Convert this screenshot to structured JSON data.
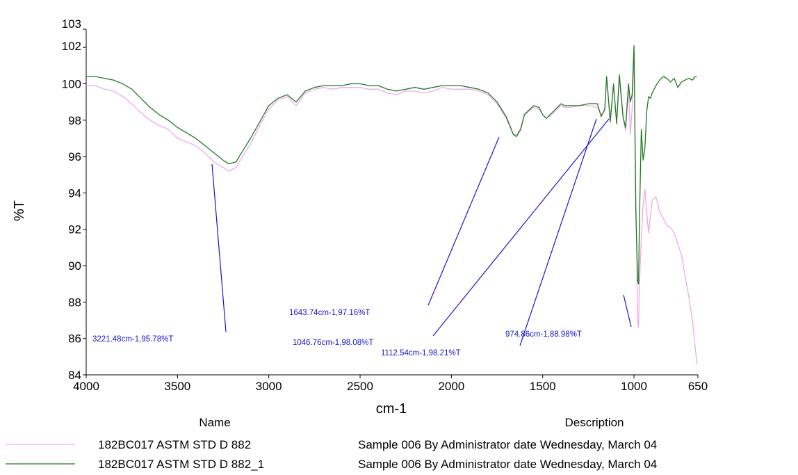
{
  "chart_data": {
    "type": "line",
    "title": "",
    "xlabel": "cm-1",
    "ylabel": "%T",
    "xlim": [
      4000,
      650
    ],
    "x_reversed": true,
    "ylim": [
      84,
      103
    ],
    "x_ticks": [
      4000,
      3500,
      3000,
      2500,
      2000,
      1500,
      1000,
      650
    ],
    "y_ticks": [
      84,
      86,
      88,
      90,
      92,
      94,
      96,
      98,
      100,
      102,
      103
    ],
    "grid": false,
    "legend": {
      "placement": "bottom",
      "name_header": "Name",
      "description_header": "Description"
    },
    "series": [
      {
        "name": "182BC017 ASTM STD D 882",
        "description": "Sample 006 By Administrator date Wednesday, March 04",
        "color": "#f2a7ee",
        "x": [
          4000,
          3950,
          3900,
          3850,
          3800,
          3750,
          3700,
          3650,
          3600,
          3550,
          3500,
          3450,
          3400,
          3350,
          3300,
          3250,
          3220,
          3180,
          3150,
          3100,
          3050,
          3000,
          2950,
          2900,
          2850,
          2800,
          2750,
          2700,
          2650,
          2600,
          2550,
          2500,
          2450,
          2400,
          2350,
          2300,
          2250,
          2200,
          2150,
          2100,
          2050,
          2000,
          1950,
          1900,
          1850,
          1800,
          1750,
          1700,
          1660,
          1643,
          1620,
          1600,
          1550,
          1520,
          1500,
          1480,
          1450,
          1420,
          1400,
          1380,
          1350,
          1300,
          1250,
          1200,
          1180,
          1160,
          1150,
          1140,
          1130,
          1112,
          1095,
          1080,
          1060,
          1046,
          1030,
          1020,
          1010,
          1000,
          990,
          980,
          975,
          970,
          960,
          950,
          940,
          930,
          920,
          910,
          900,
          880,
          860,
          840,
          820,
          800,
          780,
          760,
          740,
          720,
          700,
          680,
          665,
          655
        ],
        "y": [
          99.9,
          99.9,
          99.7,
          99.6,
          99.3,
          98.9,
          98.4,
          98.0,
          97.7,
          97.5,
          97.0,
          96.8,
          96.6,
          96.2,
          95.7,
          95.4,
          95.2,
          95.4,
          95.9,
          96.7,
          97.7,
          98.6,
          99.1,
          99.3,
          98.8,
          99.5,
          99.7,
          99.8,
          99.7,
          99.8,
          99.8,
          99.8,
          99.7,
          99.7,
          99.5,
          99.4,
          99.6,
          99.6,
          99.5,
          99.6,
          99.8,
          99.7,
          99.7,
          99.7,
          99.6,
          99.4,
          98.9,
          98.1,
          97.2,
          97.2,
          97.6,
          98.3,
          98.7,
          98.6,
          98.3,
          98.1,
          98.3,
          98.6,
          98.8,
          98.7,
          98.7,
          98.8,
          98.8,
          98.7,
          98.3,
          98.5,
          100.2,
          99.1,
          98.0,
          99.8,
          98.0,
          100.3,
          98.1,
          97.4,
          99.8,
          97.2,
          98.6,
          101.5,
          94.0,
          87.0,
          86.6,
          89.0,
          91.5,
          93.4,
          94.2,
          92.9,
          91.8,
          92.8,
          93.6,
          93.8,
          93.0,
          92.6,
          92.2,
          92.1,
          91.8,
          91.2,
          90.6,
          89.4,
          88.3,
          87.0,
          85.5,
          84.6
        ]
      },
      {
        "name": "182BC017 ASTM STD D 882_1",
        "description": "Sample 006 By Administrator date Wednesday, March 04",
        "color": "#1e7a1e",
        "x": [
          4000,
          3950,
          3900,
          3850,
          3800,
          3750,
          3700,
          3650,
          3600,
          3550,
          3500,
          3450,
          3400,
          3350,
          3300,
          3250,
          3220,
          3180,
          3150,
          3100,
          3050,
          3000,
          2950,
          2900,
          2850,
          2800,
          2750,
          2700,
          2650,
          2600,
          2550,
          2500,
          2450,
          2400,
          2350,
          2300,
          2250,
          2200,
          2150,
          2100,
          2050,
          2000,
          1950,
          1900,
          1850,
          1800,
          1750,
          1700,
          1660,
          1643,
          1620,
          1600,
          1550,
          1520,
          1500,
          1480,
          1450,
          1420,
          1400,
          1380,
          1350,
          1300,
          1250,
          1200,
          1180,
          1160,
          1150,
          1140,
          1130,
          1112,
          1095,
          1080,
          1060,
          1046,
          1030,
          1020,
          1010,
          1000,
          990,
          980,
          975,
          970,
          960,
          950,
          940,
          930,
          920,
          910,
          900,
          880,
          860,
          840,
          820,
          800,
          780,
          760,
          740,
          720,
          700,
          680,
          665,
          655
        ],
        "y": [
          100.4,
          100.4,
          100.3,
          100.2,
          100.0,
          99.7,
          99.2,
          98.7,
          98.3,
          98.0,
          97.6,
          97.3,
          97.0,
          96.6,
          96.2,
          95.8,
          95.6,
          95.7,
          96.2,
          97.0,
          97.9,
          98.8,
          99.2,
          99.4,
          99.0,
          99.6,
          99.8,
          99.9,
          99.9,
          99.9,
          100.0,
          100.0,
          99.9,
          99.9,
          99.7,
          99.6,
          99.7,
          99.8,
          99.7,
          99.8,
          99.9,
          99.9,
          99.9,
          99.8,
          99.7,
          99.5,
          99.0,
          98.2,
          97.2,
          97.1,
          97.5,
          98.3,
          98.8,
          98.7,
          98.3,
          98.1,
          98.4,
          98.7,
          98.9,
          98.8,
          98.8,
          98.8,
          98.9,
          98.9,
          98.2,
          98.6,
          100.4,
          99.2,
          97.9,
          100.0,
          97.8,
          100.5,
          98.2,
          97.6,
          100.0,
          99.0,
          99.4,
          102.1,
          93.0,
          89.2,
          89.0,
          92.5,
          97.5,
          95.8,
          96.5,
          98.5,
          99.3,
          99.2,
          99.5,
          99.9,
          100.2,
          100.4,
          100.3,
          100.1,
          100.3,
          99.8,
          100.1,
          100.2,
          100.3,
          100.2,
          100.4,
          100.4
        ]
      }
    ],
    "annotations": [
      {
        "label": "3221.48cm-1,95.78%T",
        "peak_x": 3221.48,
        "peak_y": 95.78
      },
      {
        "label": "1643.74cm-1,97.16%T",
        "peak_x": 1643.74,
        "peak_y": 97.16
      },
      {
        "label": "1046.76cm-1,98.08%T",
        "peak_x": 1046.76,
        "peak_y": 98.08
      },
      {
        "label": "1112.54cm-1,98.21%T",
        "peak_x": 1112.54,
        "peak_y": 98.21
      },
      {
        "label": "974.86cm-1,88.98%T",
        "peak_x": 974.86,
        "peak_y": 88.98
      }
    ],
    "annotation_color": "#1414d2"
  }
}
